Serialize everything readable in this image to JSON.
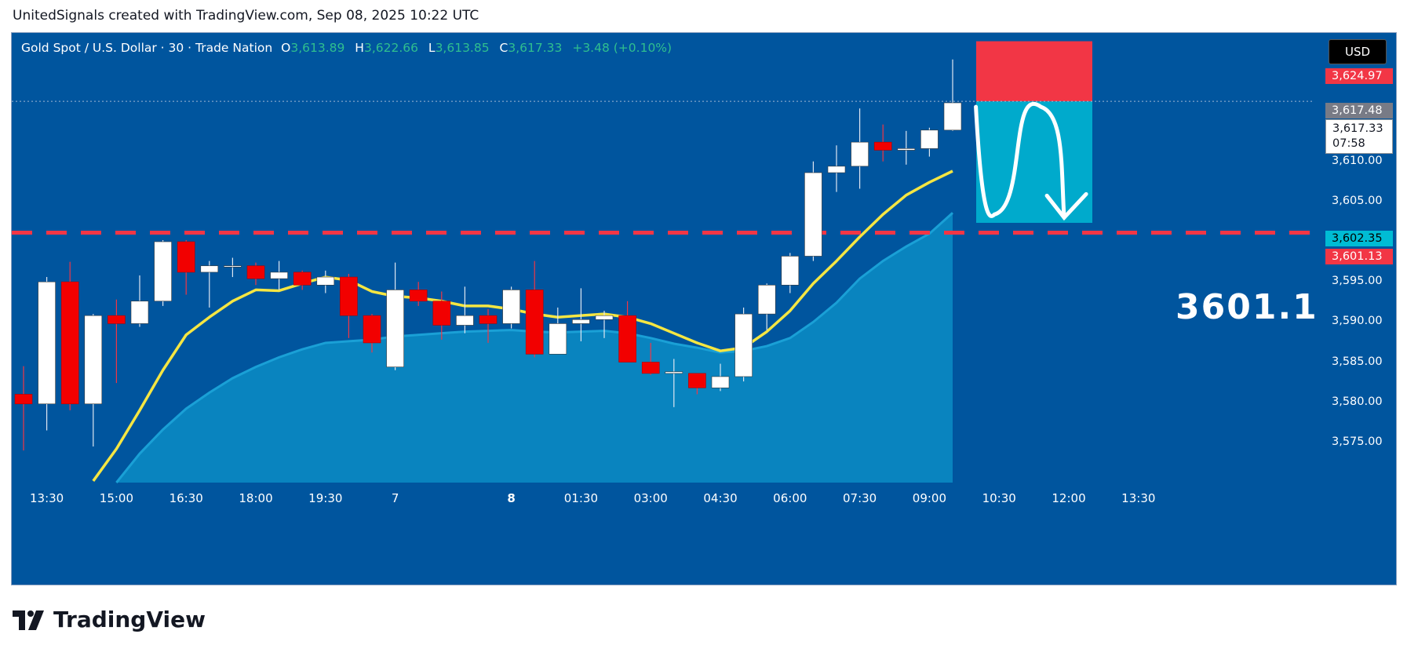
{
  "caption": "UnitedSignals created with TradingView.com, Sep 08, 2025 10:22 UTC",
  "brand": "TradingView",
  "legend": {
    "symbol": "Gold Spot / U.S. Dollar · 30 · Trade Nation",
    "o_key": "O",
    "o_val": "3,613.89",
    "h_key": "H",
    "h_val": "3,622.66",
    "l_key": "L",
    "l_val": "3,613.85",
    "c_key": "C",
    "c_val": "3,617.33",
    "change": "+3.48 (+0.10%)"
  },
  "currency_button": "USD",
  "price_tags": {
    "stop": "3,624.97",
    "prev": "3,617.48",
    "last": "3,617.33",
    "countdown": "07:58",
    "target": "3,602.35",
    "support": "3,601.13"
  },
  "target_label": "3601.1",
  "colors": {
    "background": "#00559e",
    "up": "#ffffff",
    "down": "#f20000",
    "ema_fast": "#f5e642",
    "ema_slow_fill": "#0b8dc4",
    "support_line": "#f23645",
    "stop_box": "#f23645",
    "target_box": "#00aacc"
  },
  "chart_data": {
    "type": "candlestick",
    "ylim": [
      3570,
      3626
    ],
    "y_ticks": [
      3575,
      3580,
      3585,
      3590,
      3595,
      3605,
      3610
    ],
    "y_tick_labels": [
      "3,575.00",
      "3,580.00",
      "3,585.00",
      "3,590.00",
      "3,595.00",
      "3,605.00",
      "3,610.00"
    ],
    "x_ticks": [
      {
        "label": "13:30",
        "i": 1
      },
      {
        "label": "15:00",
        "i": 4
      },
      {
        "label": "16:30",
        "i": 7
      },
      {
        "label": "18:00",
        "i": 10
      },
      {
        "label": "19:30",
        "i": 13
      },
      {
        "label": "7",
        "i": 16
      },
      {
        "label": "8",
        "i": 21,
        "bold": true
      },
      {
        "label": "01:30",
        "i": 24
      },
      {
        "label": "03:00",
        "i": 27
      },
      {
        "label": "04:30",
        "i": 30
      },
      {
        "label": "06:00",
        "i": 33
      },
      {
        "label": "07:30",
        "i": 36
      },
      {
        "label": "09:00",
        "i": 39
      },
      {
        "label": "10:30",
        "i": 42
      },
      {
        "label": "12:00",
        "i": 45
      },
      {
        "label": "13:30",
        "i": 48
      }
    ],
    "candles": [
      {
        "o": 3581.0,
        "h": 3584.5,
        "l": 3574.0,
        "c": 3579.8
      },
      {
        "o": 3579.8,
        "h": 3595.6,
        "l": 3576.5,
        "c": 3595.0
      },
      {
        "o": 3595.0,
        "h": 3597.5,
        "l": 3579.0,
        "c": 3579.8
      },
      {
        "o": 3579.8,
        "h": 3591.0,
        "l": 3574.5,
        "c": 3590.8
      },
      {
        "o": 3590.8,
        "h": 3592.8,
        "l": 3582.4,
        "c": 3589.8
      },
      {
        "o": 3589.8,
        "h": 3595.8,
        "l": 3589.4,
        "c": 3592.6
      },
      {
        "o": 3592.6,
        "h": 3600.2,
        "l": 3592.0,
        "c": 3600.0
      },
      {
        "o": 3600.0,
        "h": 3600.2,
        "l": 3593.4,
        "c": 3596.2
      },
      {
        "o": 3596.2,
        "h": 3597.6,
        "l": 3591.8,
        "c": 3597.0
      },
      {
        "o": 3597.0,
        "h": 3598.0,
        "l": 3595.6,
        "c": 3597.0
      },
      {
        "o": 3597.0,
        "h": 3597.4,
        "l": 3594.6,
        "c": 3595.4
      },
      {
        "o": 3595.4,
        "h": 3597.6,
        "l": 3594.0,
        "c": 3596.2
      },
      {
        "o": 3596.2,
        "h": 3596.4,
        "l": 3594.0,
        "c": 3594.6
      },
      {
        "o": 3594.6,
        "h": 3596.4,
        "l": 3593.6,
        "c": 3595.6
      },
      {
        "o": 3595.6,
        "h": 3596.0,
        "l": 3588.0,
        "c": 3590.8
      },
      {
        "o": 3590.8,
        "h": 3591.0,
        "l": 3586.2,
        "c": 3587.4
      },
      {
        "o": 3584.4,
        "h": 3597.4,
        "l": 3584.0,
        "c": 3594.0
      },
      {
        "o": 3594.0,
        "h": 3595.0,
        "l": 3592.0,
        "c": 3592.6
      },
      {
        "o": 3592.6,
        "h": 3593.8,
        "l": 3587.8,
        "c": 3589.6
      },
      {
        "o": 3589.6,
        "h": 3594.4,
        "l": 3588.6,
        "c": 3590.8
      },
      {
        "o": 3590.8,
        "h": 3591.6,
        "l": 3587.4,
        "c": 3589.8
      },
      {
        "o": 3589.8,
        "h": 3594.4,
        "l": 3589.2,
        "c": 3594.0
      },
      {
        "o": 3594.0,
        "h": 3597.6,
        "l": 3585.6,
        "c": 3586.0
      },
      {
        "o": 3586.0,
        "h": 3591.8,
        "l": 3586.0,
        "c": 3589.8
      },
      {
        "o": 3589.8,
        "h": 3594.2,
        "l": 3587.6,
        "c": 3590.3
      },
      {
        "o": 3590.3,
        "h": 3591.4,
        "l": 3588.0,
        "c": 3590.8
      },
      {
        "o": 3590.8,
        "h": 3592.6,
        "l": 3585.4,
        "c": 3585.0
      },
      {
        "o": 3585.0,
        "h": 3587.4,
        "l": 3583.4,
        "c": 3583.6
      },
      {
        "o": 3583.6,
        "h": 3585.4,
        "l": 3579.4,
        "c": 3583.8
      },
      {
        "o": 3583.6,
        "h": 3583.6,
        "l": 3581.0,
        "c": 3581.8
      },
      {
        "o": 3581.8,
        "h": 3584.8,
        "l": 3581.4,
        "c": 3583.2
      },
      {
        "o": 3583.2,
        "h": 3591.8,
        "l": 3582.6,
        "c": 3591.0
      },
      {
        "o": 3591.0,
        "h": 3594.8,
        "l": 3589.0,
        "c": 3594.6
      },
      {
        "o": 3594.6,
        "h": 3598.6,
        "l": 3593.6,
        "c": 3598.2
      },
      {
        "o": 3598.2,
        "h": 3610.0,
        "l": 3597.6,
        "c": 3608.6
      },
      {
        "o": 3608.6,
        "h": 3612.0,
        "l": 3606.2,
        "c": 3609.4
      },
      {
        "o": 3609.4,
        "h": 3616.6,
        "l": 3606.6,
        "c": 3612.4
      },
      {
        "o": 3612.4,
        "h": 3614.6,
        "l": 3610.0,
        "c": 3611.4
      },
      {
        "o": 3611.4,
        "h": 3613.8,
        "l": 3609.6,
        "c": 3611.6
      },
      {
        "o": 3611.6,
        "h": 3614.2,
        "l": 3610.6,
        "c": 3613.9
      },
      {
        "o": 3613.9,
        "h": 3622.7,
        "l": 3613.8,
        "c": 3617.3
      }
    ],
    "ema_fast": [
      null,
      null,
      null,
      3570.2,
      3574.2,
      3579.0,
      3584.0,
      3588.4,
      3590.6,
      3592.6,
      3594.0,
      3593.9,
      3594.8,
      3595.6,
      3595.2,
      3593.8,
      3593.2,
      3593.0,
      3592.6,
      3592.0,
      3592.0,
      3591.6,
      3591.0,
      3590.6,
      3590.8,
      3591.0,
      3590.6,
      3589.8,
      3588.6,
      3587.4,
      3586.4,
      3586.8,
      3588.8,
      3591.4,
      3594.8,
      3597.6,
      3600.6,
      3603.4,
      3605.8,
      3607.4,
      3608.8
    ],
    "ema_slow": [
      null,
      null,
      null,
      null,
      3570.0,
      3573.6,
      3576.6,
      3579.2,
      3581.2,
      3583.0,
      3584.4,
      3585.6,
      3586.6,
      3587.4,
      3587.6,
      3587.8,
      3588.2,
      3588.4,
      3588.6,
      3588.8,
      3588.9,
      3589.0,
      3588.8,
      3588.7,
      3588.8,
      3588.9,
      3588.6,
      3588.0,
      3587.3,
      3586.8,
      3586.2,
      3586.4,
      3587.0,
      3588.0,
      3590.0,
      3592.4,
      3595.4,
      3597.6,
      3599.4,
      3601.0,
      3603.6
    ],
    "support_level": 3601.13,
    "position": {
      "entry": 3617.48,
      "stop": 3624.97,
      "target": 3602.35
    },
    "projected_path": [
      {
        "i": 41.0,
        "y": 3616.8
      },
      {
        "i": 41.8,
        "y": 3603.4
      },
      {
        "i": 43.8,
        "y": 3616.8
      },
      {
        "i": 44.8,
        "y": 3603.0
      }
    ]
  }
}
